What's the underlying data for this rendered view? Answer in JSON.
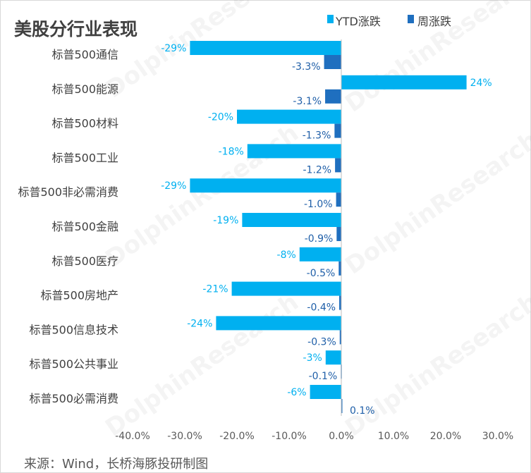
{
  "chart_data": {
    "type": "bar",
    "orientation": "horizontal",
    "title": "美股分行业表现",
    "categories": [
      "标普500通信",
      "标普500能源",
      "标普500材料",
      "标普500工业",
      "标普500非必需消费",
      "标普500金融",
      "标普500医疗",
      "标普500房地产",
      "标普500信息技术",
      "标普500公共事业",
      "标普500必需消费"
    ],
    "series": [
      {
        "name": "YTD涨跌",
        "color": "#00b0f0",
        "values": [
          -29,
          24,
          -20,
          -18,
          -29,
          -19,
          -8,
          -21,
          -24,
          -3,
          -6
        ],
        "labels": [
          "-29%",
          "24%",
          "-20%",
          "-18%",
          "-29%",
          "-19%",
          "-8%",
          "-21%",
          "-24%",
          "-3%",
          "-6%"
        ]
      },
      {
        "name": "周涨跌",
        "color": "#1f6fbf",
        "values": [
          -3.3,
          -3.1,
          -1.3,
          -1.2,
          -1.0,
          -0.9,
          -0.5,
          -0.4,
          -0.3,
          -0.1,
          0.1
        ],
        "labels": [
          "-3.3%",
          "-3.1%",
          "-1.3%",
          "-1.2%",
          "-1.0%",
          "-0.9%",
          "-0.5%",
          "-0.4%",
          "-0.3%",
          "-0.1%",
          "0.1%"
        ]
      }
    ],
    "xlim": [
      -40,
      30
    ],
    "xticks": [
      "-40.0%",
      "-30.0%",
      "-20.0%",
      "-10.0%",
      "0.0%",
      "10.0%",
      "20.0%",
      "30.0%"
    ],
    "xtick_values": [
      -40,
      -30,
      -20,
      -10,
      0,
      10,
      20,
      30
    ],
    "legend": "top-right",
    "grid": false
  },
  "source": "来源：Wind，长桥海豚投研制图",
  "watermark": "DolphinResearch"
}
